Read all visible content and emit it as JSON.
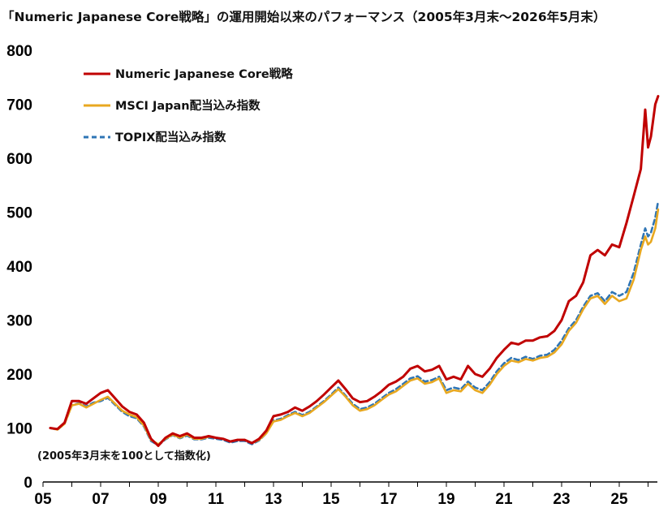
{
  "chart_data": {
    "type": "line",
    "title": "「Numeric Japanese Core戦略」の運用開始以来のパフォーマンス（2005年3月末〜2026年5月末）",
    "note": "(2005年3月末を100として指数化)",
    "xlabel": "",
    "ylabel": "",
    "xlim": [
      2005.0,
      2026.4
    ],
    "ylim": [
      0,
      800
    ],
    "y_ticks": [
      0,
      100,
      200,
      300,
      400,
      500,
      600,
      700,
      800
    ],
    "x_ticks": [
      2005,
      2007,
      2009,
      2011,
      2013,
      2015,
      2017,
      2019,
      2021,
      2023,
      2025
    ],
    "x_tick_labels": [
      "05",
      "07",
      "09",
      "11",
      "13",
      "15",
      "17",
      "19",
      "21",
      "23",
      "25"
    ],
    "grid": false,
    "legend_position": "top-left",
    "series": [
      {
        "name": "Numeric Japanese Core戦略",
        "color": "#c00000",
        "dash": "solid",
        "x": [
          2005.25,
          2005.5,
          2005.75,
          2006.0,
          2006.25,
          2006.5,
          2006.75,
          2007.0,
          2007.25,
          2007.5,
          2007.75,
          2008.0,
          2008.25,
          2008.5,
          2008.75,
          2009.0,
          2009.25,
          2009.5,
          2009.75,
          2010.0,
          2010.25,
          2010.5,
          2010.75,
          2011.0,
          2011.25,
          2011.5,
          2011.75,
          2012.0,
          2012.25,
          2012.5,
          2012.75,
          2013.0,
          2013.25,
          2013.5,
          2013.75,
          2014.0,
          2014.25,
          2014.5,
          2014.75,
          2015.0,
          2015.25,
          2015.5,
          2015.75,
          2016.0,
          2016.25,
          2016.5,
          2016.75,
          2017.0,
          2017.25,
          2017.5,
          2017.75,
          2018.0,
          2018.25,
          2018.5,
          2018.75,
          2019.0,
          2019.25,
          2019.5,
          2019.75,
          2020.0,
          2020.25,
          2020.5,
          2020.75,
          2021.0,
          2021.25,
          2021.5,
          2021.75,
          2022.0,
          2022.25,
          2022.5,
          2022.75,
          2023.0,
          2023.25,
          2023.5,
          2023.75,
          2024.0,
          2024.25,
          2024.5,
          2024.75,
          2025.0,
          2025.25,
          2025.5,
          2025.75,
          2025.9,
          2026.0,
          2026.1,
          2026.25,
          2026.35
        ],
        "values": [
          100,
          98,
          110,
          150,
          150,
          145,
          155,
          165,
          170,
          155,
          140,
          130,
          125,
          110,
          80,
          67,
          82,
          90,
          85,
          90,
          82,
          82,
          85,
          82,
          80,
          75,
          78,
          78,
          72,
          80,
          95,
          122,
          125,
          130,
          138,
          132,
          140,
          150,
          162,
          175,
          188,
          172,
          155,
          148,
          150,
          158,
          168,
          180,
          186,
          195,
          210,
          215,
          205,
          208,
          215,
          190,
          195,
          190,
          215,
          200,
          195,
          210,
          230,
          245,
          258,
          255,
          262,
          262,
          268,
          270,
          280,
          300,
          335,
          345,
          370,
          420,
          430,
          420,
          440,
          435,
          480,
          530,
          580,
          690,
          620,
          640,
          700,
          715
        ]
      },
      {
        "name": "MSCI Japan配当込み指数",
        "color": "#e8a820",
        "dash": "solid",
        "x": [
          2005.25,
          2005.5,
          2005.75,
          2006.0,
          2006.25,
          2006.5,
          2006.75,
          2007.0,
          2007.25,
          2007.5,
          2007.75,
          2008.0,
          2008.25,
          2008.5,
          2008.75,
          2009.0,
          2009.25,
          2009.5,
          2009.75,
          2010.0,
          2010.25,
          2010.5,
          2010.75,
          2011.0,
          2011.25,
          2011.5,
          2011.75,
          2012.0,
          2012.25,
          2012.5,
          2012.75,
          2013.0,
          2013.25,
          2013.5,
          2013.75,
          2014.0,
          2014.25,
          2014.5,
          2014.75,
          2015.0,
          2015.25,
          2015.5,
          2015.75,
          2016.0,
          2016.25,
          2016.5,
          2016.75,
          2017.0,
          2017.25,
          2017.5,
          2017.75,
          2018.0,
          2018.25,
          2018.5,
          2018.75,
          2019.0,
          2019.25,
          2019.5,
          2019.75,
          2020.0,
          2020.25,
          2020.5,
          2020.75,
          2021.0,
          2021.25,
          2021.5,
          2021.75,
          2022.0,
          2022.25,
          2022.5,
          2022.75,
          2023.0,
          2023.25,
          2023.5,
          2023.75,
          2024.0,
          2024.25,
          2024.5,
          2024.75,
          2025.0,
          2025.25,
          2025.5,
          2025.75,
          2025.9,
          2026.0,
          2026.1,
          2026.25,
          2026.35
        ],
        "values": [
          100,
          97,
          108,
          142,
          145,
          138,
          145,
          152,
          158,
          145,
          132,
          125,
          120,
          105,
          78,
          70,
          80,
          88,
          82,
          88,
          80,
          80,
          84,
          82,
          80,
          75,
          78,
          78,
          72,
          78,
          90,
          112,
          115,
          122,
          128,
          122,
          128,
          138,
          148,
          160,
          172,
          158,
          142,
          132,
          135,
          142,
          152,
          162,
          168,
          178,
          188,
          192,
          182,
          185,
          192,
          165,
          170,
          168,
          182,
          170,
          165,
          180,
          200,
          215,
          225,
          222,
          228,
          225,
          230,
          232,
          240,
          255,
          280,
          295,
          320,
          340,
          345,
          330,
          345,
          335,
          340,
          375,
          430,
          455,
          440,
          445,
          470,
          505
        ]
      },
      {
        "name": "TOPIX配当込み指数",
        "color": "#2f75b5",
        "dash": "dashed",
        "x": [
          2005.25,
          2005.5,
          2005.75,
          2006.0,
          2006.25,
          2006.5,
          2006.75,
          2007.0,
          2007.25,
          2007.5,
          2007.75,
          2008.0,
          2008.25,
          2008.5,
          2008.75,
          2009.0,
          2009.25,
          2009.5,
          2009.75,
          2010.0,
          2010.25,
          2010.5,
          2010.75,
          2011.0,
          2011.25,
          2011.5,
          2011.75,
          2012.0,
          2012.25,
          2012.5,
          2012.75,
          2013.0,
          2013.25,
          2013.5,
          2013.75,
          2014.0,
          2014.25,
          2014.5,
          2014.75,
          2015.0,
          2015.25,
          2015.5,
          2015.75,
          2016.0,
          2016.25,
          2016.5,
          2016.75,
          2017.0,
          2017.25,
          2017.5,
          2017.75,
          2018.0,
          2018.25,
          2018.5,
          2018.75,
          2019.0,
          2019.25,
          2019.5,
          2019.75,
          2020.0,
          2020.25,
          2020.5,
          2020.75,
          2021.0,
          2021.25,
          2021.5,
          2021.75,
          2022.0,
          2022.25,
          2022.5,
          2022.75,
          2023.0,
          2023.25,
          2023.5,
          2023.75,
          2024.0,
          2024.25,
          2024.5,
          2024.75,
          2025.0,
          2025.25,
          2025.5,
          2025.75,
          2025.9,
          2026.0,
          2026.1,
          2026.25,
          2026.35
        ],
        "values": [
          100,
          97,
          108,
          142,
          146,
          140,
          147,
          150,
          156,
          143,
          130,
          122,
          118,
          103,
          76,
          68,
          79,
          87,
          81,
          86,
          79,
          79,
          82,
          80,
          78,
          73,
          76,
          76,
          70,
          77,
          90,
          114,
          117,
          124,
          130,
          124,
          130,
          140,
          150,
          162,
          175,
          160,
          145,
          135,
          138,
          145,
          155,
          165,
          172,
          182,
          192,
          196,
          186,
          189,
          195,
          170,
          175,
          172,
          186,
          175,
          170,
          185,
          205,
          220,
          230,
          226,
          232,
          228,
          234,
          236,
          245,
          262,
          285,
          300,
          325,
          345,
          350,
          335,
          352,
          345,
          352,
          388,
          440,
          470,
          455,
          462,
          490,
          520
        ]
      }
    ]
  }
}
